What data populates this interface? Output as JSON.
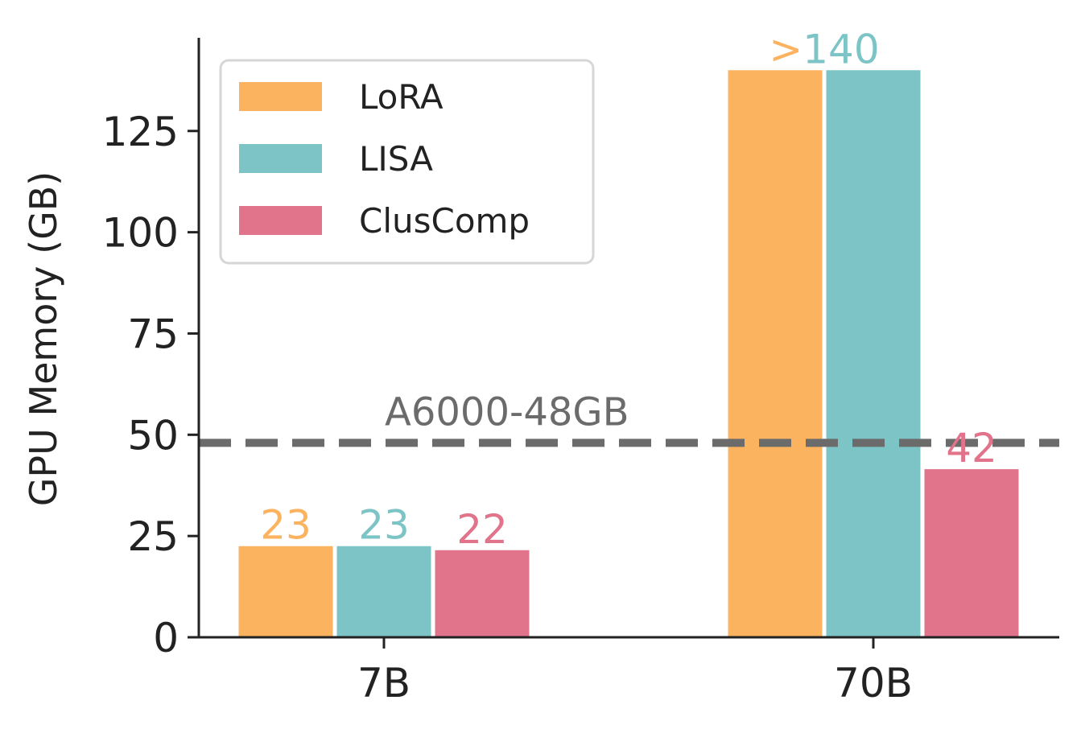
{
  "chart_data": {
    "type": "bar",
    "ylabel": "GPU Memory (GB)",
    "xlabel": "",
    "categories": [
      "7B",
      "70B"
    ],
    "ylim": [
      0,
      148
    ],
    "yticks": [
      0,
      25,
      50,
      75,
      100,
      125
    ],
    "series": [
      {
        "name": "LoRA",
        "color": "#FBB360",
        "values": [
          22.5,
          140
        ],
        "labels": [
          "23",
          ""
        ]
      },
      {
        "name": "LISA",
        "color": "#7CC4C6",
        "values": [
          22.5,
          140
        ],
        "labels": [
          "23",
          ""
        ]
      },
      {
        "name": "ClusComp",
        "color": "#E1738A",
        "values": [
          21.5,
          41.5
        ],
        "labels": [
          "22",
          "42"
        ]
      }
    ],
    "overflow_label": {
      "category": "70B",
      "prefix": ">",
      "value": "140",
      "prefix_color": "#FBB360",
      "value_color": "#7CC4C6"
    },
    "reference_line": {
      "value": 48,
      "label": "A6000-48GB",
      "color": "#6b6b6b",
      "style": "dashed"
    },
    "legend": {
      "position": "top-left"
    },
    "grid": false
  }
}
